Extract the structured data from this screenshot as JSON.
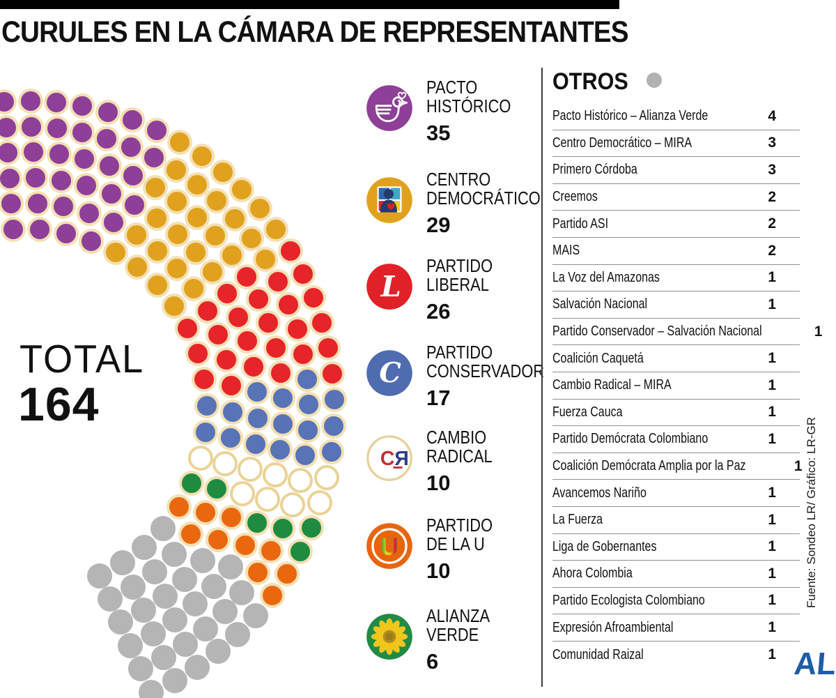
{
  "title": "CURULES EN LA CÁMARA DE REPRESENTANTES",
  "total": {
    "label": "TOTAL",
    "value": "164"
  },
  "chart_data": {
    "type": "parliament",
    "total_seats": 164,
    "rows": 6,
    "seat_ring_color": "#f3e0b4",
    "fill_order": [
      "pacto-historico",
      "centro-democratico",
      "partido-liberal",
      "partido-conservador",
      "cambio-radical",
      "alianza-verde",
      "partido-de-la-u",
      "otros"
    ],
    "parties": [
      {
        "id": "pacto-historico",
        "name": "PACTO HISTÓRICO",
        "name_lines": [
          "PACTO",
          "HISTÓRICO"
        ],
        "seats": 35,
        "color": "#8e3f97",
        "ring": "#f3e0b4"
      },
      {
        "id": "centro-democratico",
        "name": "CENTRO DEMOCRÁTICO",
        "name_lines": [
          "CENTRO",
          "DEMOCRÁTICO"
        ],
        "seats": 29,
        "color": "#e0a21e",
        "ring": "#f3e0b4"
      },
      {
        "id": "partido-liberal",
        "name": "PARTIDO LIBERAL",
        "name_lines": [
          "PARTIDO",
          "LIBERAL"
        ],
        "seats": 26,
        "color": "#e6242a",
        "ring": "#f3e0b4"
      },
      {
        "id": "partido-conservador",
        "name": "PARTIDO CONSERVADOR",
        "name_lines": [
          "PARTIDO",
          "CONSERVADOR"
        ],
        "seats": 17,
        "color": "#5873b6",
        "ring": "#f3e0b4"
      },
      {
        "id": "cambio-radical",
        "name": "CAMBIO RADICAL",
        "name_lines": [
          "CAMBIO",
          "RADICAL"
        ],
        "seats": 10,
        "color": "#ffffff",
        "ring": "#ead397"
      },
      {
        "id": "partido-de-la-u",
        "name": "PARTIDO DE LA U",
        "name_lines": [
          "PARTIDO",
          "DE LA U"
        ],
        "seats": 10,
        "color": "#e9680f",
        "ring": "#f3e0b4"
      },
      {
        "id": "alianza-verde",
        "name": "ALIANZA VERDE",
        "name_lines": [
          "ALIANZA",
          "VERDE"
        ],
        "seats": 6,
        "color": "#1e8b40",
        "ring": "#f3e0b4"
      }
    ],
    "otros": {
      "id": "otros",
      "name": "Otros",
      "seats": 31,
      "color": "#b5b5b5",
      "ring": "#b5b5b5"
    }
  },
  "legend_tops": [
    112,
    244,
    368,
    492,
    614,
    740,
    870
  ],
  "otros_panel": {
    "heading": "OTROS",
    "dot_color": "#b2b2b2",
    "rows": [
      {
        "name": "Pacto Histórico – Alianza Verde",
        "value": "4"
      },
      {
        "name": "Centro Democrático – MIRA",
        "value": "3"
      },
      {
        "name": "Primero Córdoba",
        "value": "3"
      },
      {
        "name": "Creemos",
        "value": "2"
      },
      {
        "name": "Partido ASI",
        "value": "2"
      },
      {
        "name": "MAIS",
        "value": "2"
      },
      {
        "name": "La Voz del Amazonas",
        "value": "1"
      },
      {
        "name": "Salvación Nacional",
        "value": "1"
      },
      {
        "name": "Partido Conservador – Salvación Nacional",
        "value": "1"
      },
      {
        "name": "Coalición Caquetá",
        "value": "1"
      },
      {
        "name": "Cambio Radical – MIRA",
        "value": "1"
      },
      {
        "name": "Fuerza Cauca",
        "value": "1"
      },
      {
        "name": "Partido Demócrata Colombiano",
        "value": "1"
      },
      {
        "name": "Coalición Demócrata Amplia por la Paz",
        "value": "1"
      },
      {
        "name": "Avancemos Nariño",
        "value": "1"
      },
      {
        "name": "La Fuerza",
        "value": "1"
      },
      {
        "name": "Liga de Gobernantes",
        "value": "1"
      },
      {
        "name": "Ahora Colombia",
        "value": "1"
      },
      {
        "name": "Partido Ecologista Colombiano",
        "value": "1"
      },
      {
        "name": "Expresión Afroambiental",
        "value": "1"
      },
      {
        "name": "Comunidad Raizal",
        "value": "1"
      }
    ]
  },
  "footer": {
    "source": "Fuente: Sondeo LR/ Gráfico: LR-GR",
    "brand": "AL",
    "brand_color": "#1e5ca6"
  }
}
